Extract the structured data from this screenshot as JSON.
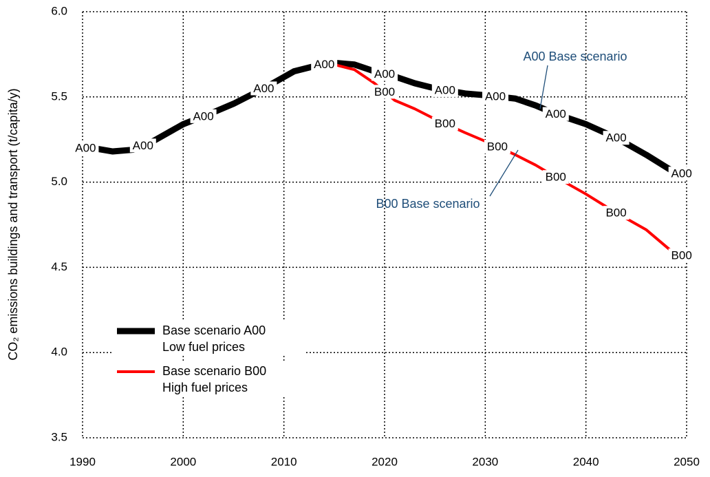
{
  "chart_data": {
    "type": "line",
    "ylabel": "CO₂ emissions buildings and transport (t/capita/y)",
    "x": [
      1991,
      1993,
      1995,
      1997,
      2000,
      2003,
      2005,
      2008,
      2011,
      2013,
      2015,
      2017,
      2019,
      2021,
      2023,
      2025,
      2028,
      2030,
      2033,
      2035,
      2037,
      2040,
      2043,
      2046,
      2049
    ],
    "series": [
      {
        "name": "Base scenario A00",
        "subname": "Low fuel prices",
        "marker": "A00",
        "color": "#000000",
        "values": [
          5.2,
          5.18,
          5.19,
          5.24,
          5.34,
          5.41,
          5.46,
          5.55,
          5.65,
          5.68,
          5.7,
          5.69,
          5.65,
          5.62,
          5.58,
          5.55,
          5.52,
          5.51,
          5.49,
          5.45,
          5.4,
          5.34,
          5.26,
          5.16,
          5.05
        ]
      },
      {
        "name": "Base scenario B00",
        "subname": "High fuel prices",
        "marker": "B00",
        "color": "#ff0000",
        "values": [
          null,
          null,
          null,
          null,
          null,
          null,
          null,
          null,
          null,
          null,
          5.69,
          5.66,
          5.58,
          5.48,
          5.43,
          5.37,
          5.29,
          5.24,
          5.16,
          5.1,
          5.03,
          4.93,
          4.82,
          4.72,
          4.57
        ]
      }
    ],
    "annotations": [
      "A00 Base scenario",
      "B00 Base scenario"
    ],
    "xlim": [
      1990,
      2050
    ],
    "xticks": [
      1990,
      2000,
      2010,
      2020,
      2030,
      2040,
      2050
    ],
    "ylim": [
      3.5,
      6.0
    ],
    "yticks": [
      {
        "value": 3.5,
        "label": "3.5"
      },
      {
        "value": 4.0,
        "label": "4.0"
      },
      {
        "value": 4.5,
        "label": "4.5"
      },
      {
        "value": 5.0,
        "label": "5.0"
      },
      {
        "value": 5.5,
        "label": "5.5"
      },
      {
        "value": 6.0,
        "label": "6.0"
      }
    ],
    "grid": true,
    "legend": "lower left"
  }
}
